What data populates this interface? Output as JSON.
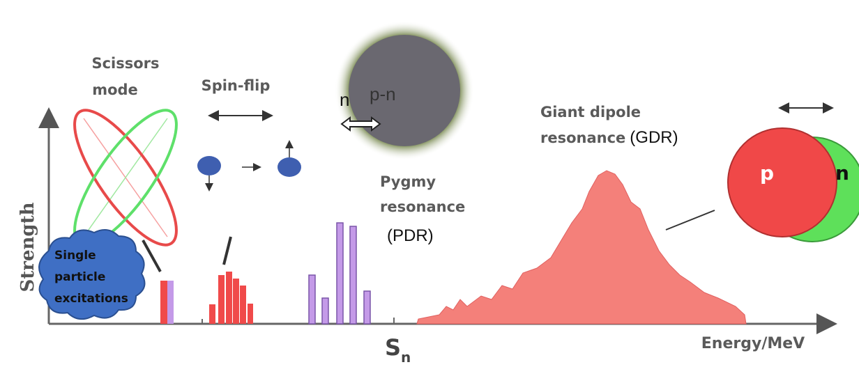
{
  "axes": {
    "y_label": "Strength",
    "x_label": "Energy/MeV",
    "threshold": {
      "symbol": "S",
      "subscript": "n"
    }
  },
  "scissors": {
    "line1": "Scissors",
    "line2": "mode"
  },
  "spin_flip": {
    "label": "Spin-flip"
  },
  "nucleus": {
    "neutron": "n",
    "core": "p-n"
  },
  "single_particle": {
    "line1": "Single",
    "line2": "particle",
    "line3": "excitations"
  },
  "pygmy": {
    "line1": "Pygmy",
    "line2": "resonance",
    "line3": "(PDR)"
  },
  "gdr": {
    "line1": "Giant dipole",
    "line2": "resonance",
    "abbr": "(GDR)",
    "proton": "p",
    "neutron": "n"
  }
}
